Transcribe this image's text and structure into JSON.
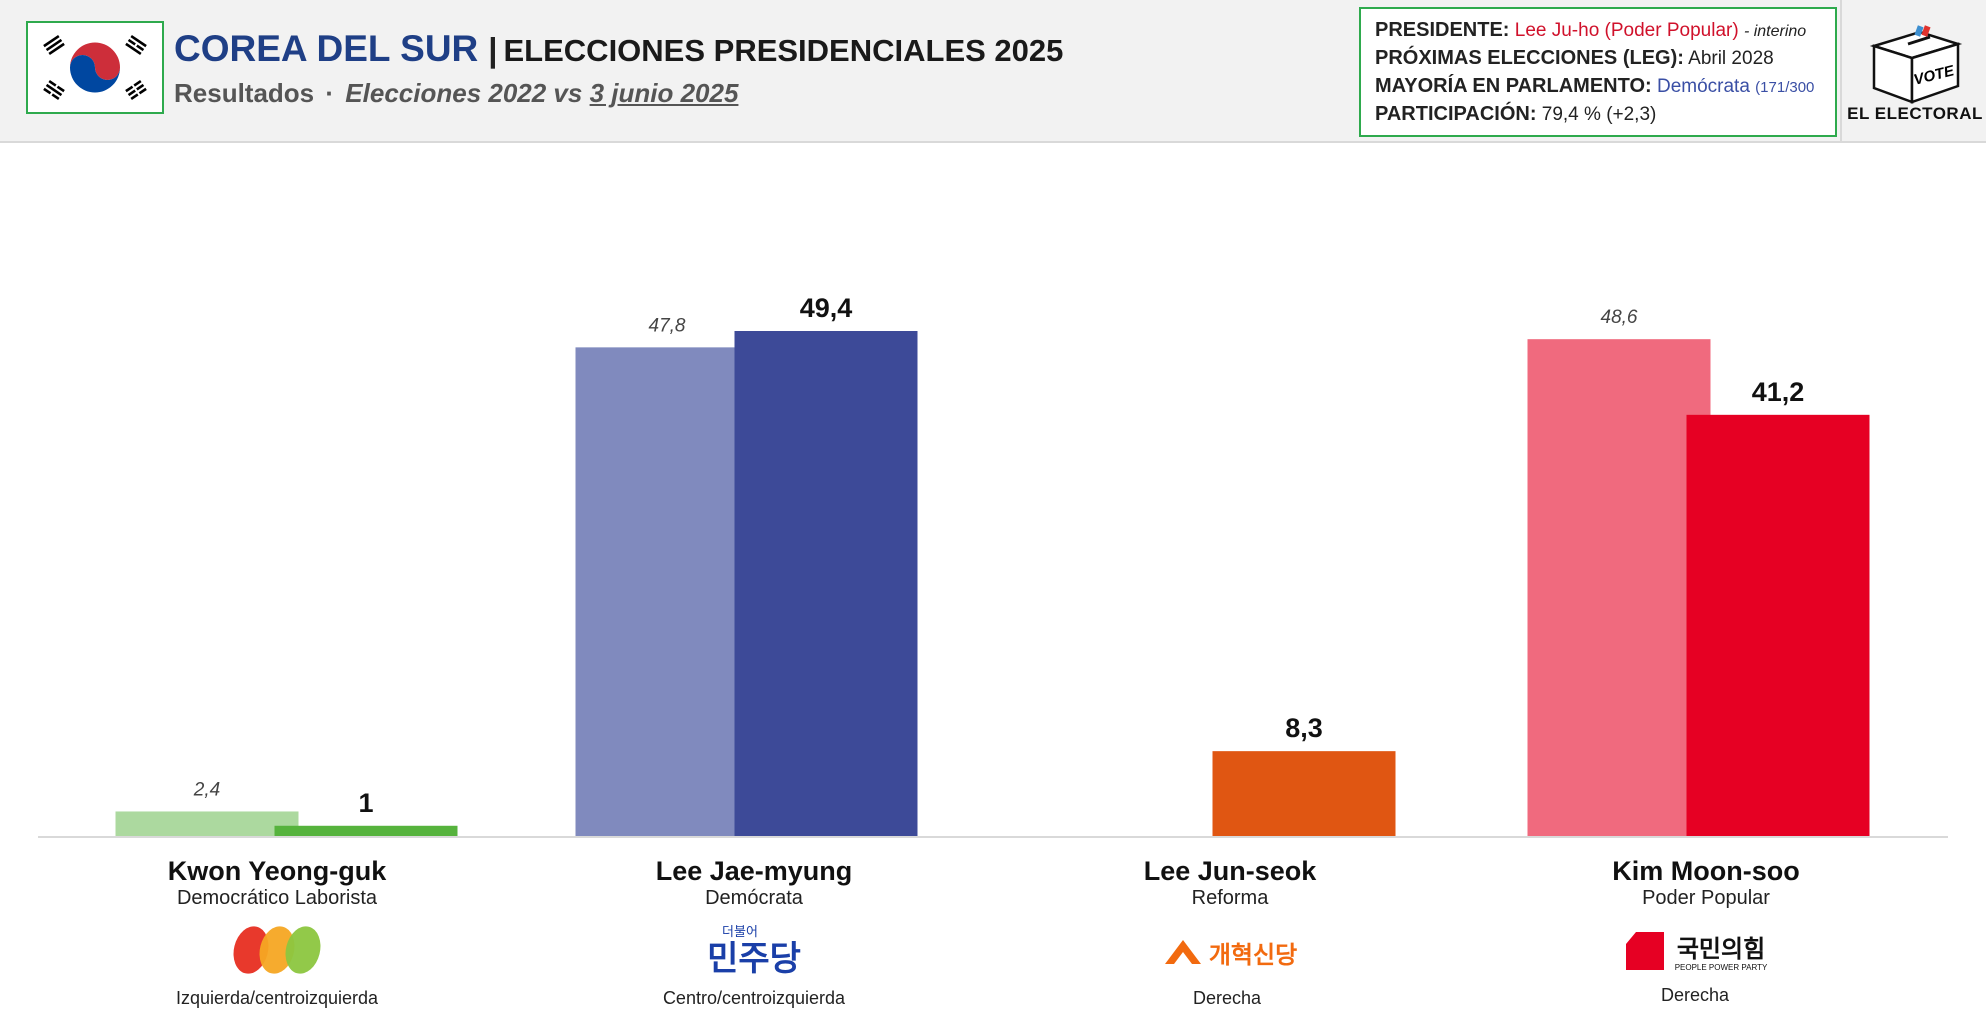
{
  "header": {
    "country": "COREA DEL SUR",
    "separator": "|",
    "election": "ELECCIONES PRESIDENCIALES 2025",
    "subtitle_results": "Resultados",
    "subtitle_dot": "·",
    "subtitle_compare": "Elecciones 2022 vs",
    "subtitle_date": "3 junio 2025"
  },
  "info": {
    "president_label": "PRESIDENTE:",
    "president_value": "Lee Ju-ho (Poder Popular)",
    "president_note": "- interino",
    "next_label": "PRÓXIMAS ELECCIONES (LEG):",
    "next_value": "Abril 2028",
    "majority_label": "MAYORÍA EN PARLAMENTO:",
    "majority_value": "Demócrata",
    "majority_seats": "(171/300",
    "turnout_label": "PARTICIPACIÓN:",
    "turnout_value": "79,4 % (+2,3)"
  },
  "brand": {
    "vote_text": "VOTE",
    "name": "EL ELECTORAL"
  },
  "candidates": [
    {
      "name": "Kwon Yeong-guk",
      "party": "Democrático Laborista",
      "ideology": "Izquierda/centroizquierda",
      "logo_text": ""
    },
    {
      "name": "Lee Jae-myung",
      "party": "Demócrata",
      "ideology": "Centro/centroizquierda",
      "logo_text": "민주당",
      "logo_small": "더불어"
    },
    {
      "name": "Lee Jun-seok",
      "party": "Reforma",
      "ideology": "Derecha",
      "logo_text": "개혁신당"
    },
    {
      "name": "Kim Moon-soo",
      "party": "Poder Popular",
      "ideology": "Derecha",
      "logo_text": "국민의힘",
      "logo_small": "PEOPLE POWER PARTY"
    }
  ],
  "chart_data": {
    "type": "bar",
    "categories": [
      "Kwon Yeong-guk",
      "Lee Jae-myung",
      "Lee Jun-seok",
      "Kim Moon-soo"
    ],
    "series": [
      {
        "values": [
          2.4,
          47.8,
          null,
          48.6
        ],
        "labels": [
          "2,4",
          "47,8",
          "",
          "48,6"
        ]
      },
      {
        "values": [
          1,
          49.4,
          8.3,
          41.2
        ],
        "labels": [
          "1",
          "49,4",
          "8,3",
          "41,2"
        ]
      }
    ],
    "ylim": [
      0,
      55
    ],
    "grid": false,
    "colors": {
      "2022": [
        "#acd99f",
        "#808abe",
        null,
        "#f06a7e"
      ],
      "2025": [
        "#56b33d",
        "#3d4a98",
        "#e05612",
        "#e60023"
      ]
    }
  }
}
